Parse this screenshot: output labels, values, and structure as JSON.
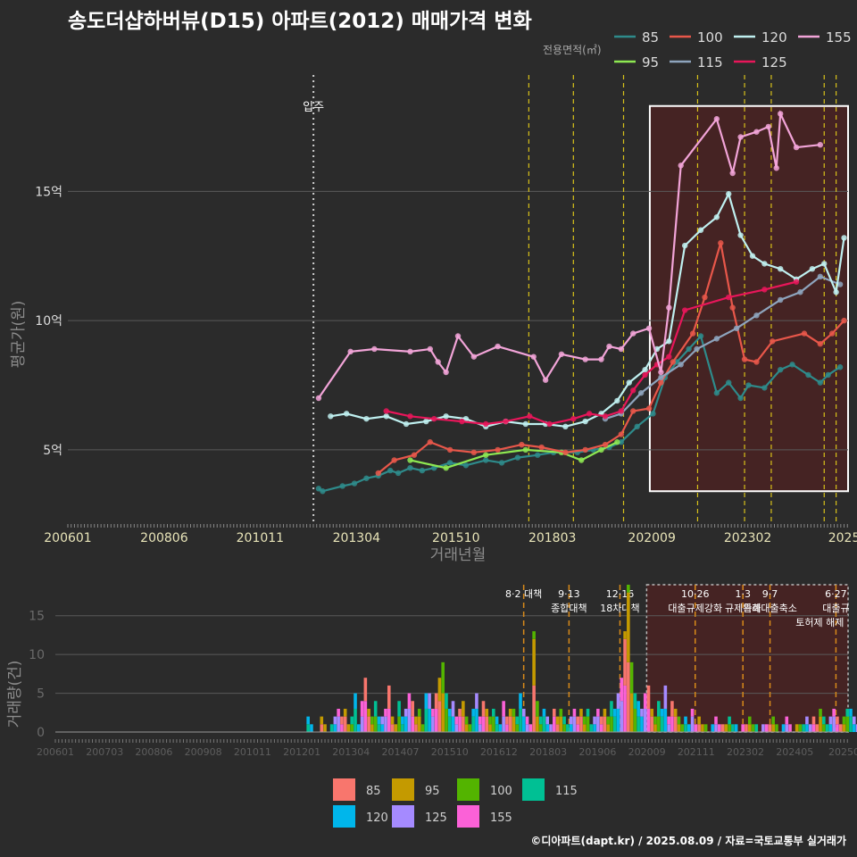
{
  "page": {
    "title": "송도더샵하버뷰(D15) 아파트(2012) 매매가격 변화",
    "credit": "©디아파트(dapt.kr) / 2025.08.09 / 자료=국토교통부 실거래가"
  },
  "colors": {
    "background": "#2b2b2b",
    "grid": "#5a5a5a",
    "policy_line": "#d8c21a",
    "highlight_fill": "#4a2222",
    "highlight_border": "#ffffff"
  },
  "chart_data": [
    {
      "type": "line",
      "title": "송도더샵하버뷰(D15) 아파트(2012) 매매가격 변화",
      "xlabel": "거래년월",
      "ylabel": "평균가(원)",
      "ylim": [
        2.2,
        19.5
      ],
      "xlim": [
        2006.0,
        2025.6
      ],
      "grid": true,
      "legend_title": "전용면적(㎡)",
      "legend_position": "top-right",
      "x_tick_labels": [
        "200601",
        "200806",
        "201011",
        "201304",
        "201510",
        "201803",
        "202009",
        "202302",
        "2025"
      ],
      "x_tick_values": [
        2006.0,
        2008.42,
        2010.83,
        2013.25,
        2015.75,
        2018.17,
        2020.67,
        2023.08,
        2025.5
      ],
      "y_tick_labels": [
        "5억",
        "10억",
        "15억"
      ],
      "y_tick_values": [
        5,
        10,
        15
      ],
      "annotations": [
        {
          "text": "입주",
          "x": 2012.17
        }
      ],
      "policy_lines_x": [
        2017.58,
        2018.7,
        2019.96,
        2021.82,
        2023.0,
        2023.67,
        2025.0,
        2025.3
      ],
      "highlight_range": {
        "x": [
          2020.62,
          2025.6
        ],
        "y": [
          3.4,
          18.3
        ]
      },
      "series": [
        {
          "name": "85",
          "color": "#2e8b8b",
          "points": [
            [
              2012.3,
              3.5
            ],
            [
              2012.4,
              3.4
            ],
            [
              2012.9,
              3.6
            ],
            [
              2013.2,
              3.7
            ],
            [
              2013.5,
              3.9
            ],
            [
              2013.8,
              4.0
            ],
            [
              2014.1,
              4.2
            ],
            [
              2014.3,
              4.1
            ],
            [
              2014.6,
              4.3
            ],
            [
              2014.9,
              4.2
            ],
            [
              2015.2,
              4.3
            ],
            [
              2015.6,
              4.5
            ],
            [
              2016.0,
              4.4
            ],
            [
              2016.5,
              4.6
            ],
            [
              2016.9,
              4.5
            ],
            [
              2017.3,
              4.7
            ],
            [
              2017.8,
              4.8
            ],
            [
              2018.2,
              4.9
            ],
            [
              2018.8,
              4.9
            ],
            [
              2019.2,
              5.0
            ],
            [
              2019.6,
              5.1
            ],
            [
              2019.9,
              5.3
            ],
            [
              2020.3,
              5.9
            ],
            [
              2020.7,
              6.4
            ],
            [
              2021.0,
              7.8
            ],
            [
              2021.3,
              8.4
            ],
            [
              2021.6,
              8.9
            ],
            [
              2021.9,
              9.4
            ],
            [
              2022.3,
              7.2
            ],
            [
              2022.6,
              7.6
            ],
            [
              2022.9,
              7.0
            ],
            [
              2023.1,
              7.5
            ],
            [
              2023.5,
              7.4
            ],
            [
              2023.9,
              8.1
            ],
            [
              2024.2,
              8.3
            ],
            [
              2024.6,
              7.9
            ],
            [
              2024.9,
              7.6
            ],
            [
              2025.1,
              7.9
            ],
            [
              2025.4,
              8.2
            ]
          ]
        },
        {
          "name": "95",
          "color": "#8ee852",
          "points": [
            [
              2014.6,
              4.6
            ],
            [
              2015.5,
              4.3
            ],
            [
              2016.5,
              4.8
            ],
            [
              2017.5,
              5.0
            ],
            [
              2018.4,
              4.9
            ],
            [
              2018.9,
              4.6
            ],
            [
              2019.4,
              5.0
            ],
            [
              2019.8,
              5.3
            ]
          ]
        },
        {
          "name": "100",
          "color": "#e8574a",
          "points": [
            [
              2013.8,
              4.1
            ],
            [
              2014.2,
              4.6
            ],
            [
              2014.7,
              4.8
            ],
            [
              2015.1,
              5.3
            ],
            [
              2015.6,
              5.0
            ],
            [
              2016.2,
              4.9
            ],
            [
              2016.8,
              5.0
            ],
            [
              2017.4,
              5.2
            ],
            [
              2017.9,
              5.1
            ],
            [
              2018.5,
              4.9
            ],
            [
              2019.0,
              5.0
            ],
            [
              2019.5,
              5.2
            ],
            [
              2019.9,
              5.6
            ],
            [
              2020.2,
              6.5
            ],
            [
              2020.6,
              6.6
            ],
            [
              2020.9,
              7.6
            ],
            [
              2021.2,
              8.4
            ],
            [
              2021.7,
              9.5
            ],
            [
              2022.0,
              10.9
            ],
            [
              2022.4,
              13.0
            ],
            [
              2022.7,
              10.5
            ],
            [
              2023.0,
              8.5
            ],
            [
              2023.3,
              8.4
            ],
            [
              2023.7,
              9.2
            ],
            [
              2024.5,
              9.5
            ],
            [
              2024.9,
              9.1
            ],
            [
              2025.2,
              9.5
            ],
            [
              2025.5,
              10.0
            ]
          ]
        },
        {
          "name": "115",
          "color": "#8ea4bd",
          "points": [
            [
              2019.5,
              6.2
            ],
            [
              2019.9,
              6.4
            ],
            [
              2020.4,
              7.2
            ],
            [
              2020.9,
              7.8
            ],
            [
              2021.4,
              8.3
            ],
            [
              2021.8,
              8.9
            ],
            [
              2022.3,
              9.3
            ],
            [
              2022.8,
              9.7
            ],
            [
              2023.3,
              10.2
            ],
            [
              2023.9,
              10.8
            ],
            [
              2024.4,
              11.1
            ],
            [
              2024.9,
              11.7
            ],
            [
              2025.4,
              11.4
            ]
          ]
        },
        {
          "name": "120",
          "color": "#bff0f0",
          "points": [
            [
              2012.6,
              6.3
            ],
            [
              2013.0,
              6.4
            ],
            [
              2013.5,
              6.2
            ],
            [
              2014.0,
              6.3
            ],
            [
              2014.5,
              6.0
            ],
            [
              2015.0,
              6.1
            ],
            [
              2015.5,
              6.3
            ],
            [
              2016.0,
              6.2
            ],
            [
              2016.5,
              5.9
            ],
            [
              2017.0,
              6.1
            ],
            [
              2017.5,
              6.0
            ],
            [
              2018.0,
              6.0
            ],
            [
              2018.5,
              5.9
            ],
            [
              2019.0,
              6.1
            ],
            [
              2019.4,
              6.4
            ],
            [
              2019.8,
              6.9
            ],
            [
              2020.1,
              7.6
            ],
            [
              2020.5,
              8.1
            ],
            [
              2020.8,
              8.9
            ],
            [
              2021.1,
              9.2
            ],
            [
              2021.5,
              12.9
            ],
            [
              2021.9,
              13.5
            ],
            [
              2022.3,
              14.0
            ],
            [
              2022.6,
              14.9
            ],
            [
              2022.9,
              13.3
            ],
            [
              2023.2,
              12.5
            ],
            [
              2023.5,
              12.2
            ],
            [
              2023.9,
              12.0
            ],
            [
              2024.3,
              11.6
            ],
            [
              2024.7,
              12.0
            ],
            [
              2025.0,
              12.2
            ],
            [
              2025.3,
              11.1
            ],
            [
              2025.5,
              13.2
            ]
          ]
        },
        {
          "name": "125",
          "color": "#e8165a",
          "points": [
            [
              2014.0,
              6.5
            ],
            [
              2014.6,
              6.3
            ],
            [
              2015.2,
              6.2
            ],
            [
              2015.9,
              6.1
            ],
            [
              2016.5,
              6.0
            ],
            [
              2017.0,
              6.1
            ],
            [
              2017.6,
              6.3
            ],
            [
              2018.1,
              6.0
            ],
            [
              2018.7,
              6.2
            ],
            [
              2019.1,
              6.4
            ],
            [
              2019.5,
              6.3
            ],
            [
              2019.9,
              6.5
            ],
            [
              2020.2,
              7.3
            ],
            [
              2020.5,
              7.9
            ],
            [
              2020.8,
              8.3
            ],
            [
              2021.1,
              8.6
            ],
            [
              2021.5,
              10.4
            ],
            [
              2022.6,
              10.9
            ],
            [
              2023.5,
              11.2
            ],
            [
              2024.3,
              11.5
            ]
          ]
        },
        {
          "name": "155",
          "color": "#f2a4d8",
          "points": [
            [
              2012.3,
              7.0
            ],
            [
              2013.1,
              8.8
            ],
            [
              2013.7,
              8.9
            ],
            [
              2014.6,
              8.8
            ],
            [
              2015.1,
              8.9
            ],
            [
              2015.3,
              8.4
            ],
            [
              2015.5,
              8.0
            ],
            [
              2015.8,
              9.4
            ],
            [
              2016.2,
              8.6
            ],
            [
              2016.8,
              9.0
            ],
            [
              2017.7,
              8.6
            ],
            [
              2018.0,
              7.7
            ],
            [
              2018.4,
              8.7
            ],
            [
              2019.0,
              8.5
            ],
            [
              2019.4,
              8.5
            ],
            [
              2019.6,
              9.0
            ],
            [
              2019.9,
              8.9
            ],
            [
              2020.2,
              9.5
            ],
            [
              2020.6,
              9.7
            ],
            [
              2020.9,
              8.0
            ],
            [
              2021.1,
              10.5
            ],
            [
              2021.4,
              16.0
            ],
            [
              2022.3,
              17.8
            ],
            [
              2022.7,
              15.7
            ],
            [
              2022.9,
              17.1
            ],
            [
              2023.3,
              17.3
            ],
            [
              2023.6,
              17.5
            ],
            [
              2023.8,
              15.9
            ],
            [
              2023.9,
              18.0
            ],
            [
              2024.3,
              16.7
            ],
            [
              2024.9,
              16.8
            ]
          ]
        }
      ]
    },
    {
      "type": "bar",
      "stacked": true,
      "ylabel": "거래량(건)",
      "ylim": [
        0,
        19
      ],
      "grid": true,
      "legend_position": "bottom",
      "x_tick_labels": [
        "200601",
        "200703",
        "200806",
        "200908",
        "201011",
        "201201",
        "201304",
        "201407",
        "201510",
        "201612",
        "201803",
        "201906",
        "202009",
        "202111",
        "202302",
        "202405",
        "20250"
      ],
      "y_tick_labels": [
        "0",
        "5",
        "10",
        "15"
      ],
      "y_tick_values": [
        0,
        5,
        10,
        15
      ],
      "policy_annotations": [
        {
          "x": 2017.58,
          "lines": [
            "8·2 대책"
          ]
        },
        {
          "x": 2018.7,
          "lines": [
            "9·13",
            "종합대책"
          ]
        },
        {
          "x": 2019.96,
          "lines": [
            "12·16",
            "18차대책"
          ]
        },
        {
          "x": 2021.82,
          "lines": [
            "10·26",
            "대출규제강화"
          ]
        },
        {
          "x": 2023.0,
          "lines": [
            "1·3",
            "규제완화"
          ]
        },
        {
          "x": 2023.67,
          "lines": [
            "9·7",
            "특례대출축소"
          ]
        },
        {
          "x": 2025.3,
          "lines": [
            "6·27",
            "대출규"
          ]
        }
      ],
      "extra_annotation": {
        "x": 2024.9,
        "text": "토허제 해제"
      },
      "highlight_range": {
        "x": [
          2020.62,
          2025.6
        ],
        "y": [
          0,
          19
        ]
      },
      "monthly_totals": {
        "start_year": 2012,
        "values": [
          0,
          0,
          0,
          2,
          1,
          0,
          0,
          2,
          1,
          0,
          1,
          2,
          3,
          2,
          3,
          1,
          2,
          5,
          1,
          4,
          7,
          3,
          2,
          4,
          2,
          2,
          3,
          6,
          2,
          1,
          4,
          2,
          3,
          5,
          4,
          2,
          3,
          1,
          5,
          5,
          3,
          5,
          7,
          9,
          5,
          3,
          4,
          2,
          3,
          4,
          2,
          1,
          3,
          5,
          2,
          4,
          3,
          2,
          3,
          2,
          1,
          4,
          2,
          3,
          3,
          2,
          5,
          3,
          2,
          1,
          13,
          4,
          2,
          3,
          2,
          1,
          3,
          2,
          3,
          2,
          1,
          2,
          3,
          2,
          3,
          2,
          3,
          1,
          2,
          3,
          2,
          3,
          2,
          4,
          3,
          5,
          7,
          13,
          19,
          9,
          5,
          4,
          3,
          5,
          6,
          3,
          2,
          4,
          3,
          6,
          2,
          4,
          3,
          2,
          1,
          2,
          1,
          3,
          1,
          2,
          1,
          1,
          0,
          1,
          2,
          1,
          1,
          1,
          2,
          1,
          1,
          0,
          1,
          1,
          2,
          1,
          1,
          0,
          1,
          1,
          1,
          2,
          1,
          0,
          1,
          2,
          1,
          0,
          1,
          1,
          1,
          2,
          1,
          2,
          1,
          3,
          2,
          1,
          2,
          3,
          2,
          1,
          2,
          3,
          3,
          2,
          1,
          2
        ]
      },
      "series": [
        {
          "name": "85",
          "color": "#f8766d"
        },
        {
          "name": "95",
          "color": "#c49a00"
        },
        {
          "name": "100",
          "color": "#53b400"
        },
        {
          "name": "115",
          "color": "#00c094"
        },
        {
          "name": "120",
          "color": "#00b6eb"
        },
        {
          "name": "125",
          "color": "#a58aff"
        },
        {
          "name": "155",
          "color": "#fb61d7"
        }
      ]
    }
  ]
}
